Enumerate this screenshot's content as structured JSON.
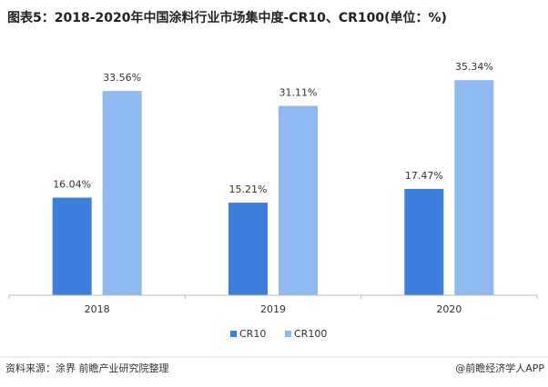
{
  "chart_data": {
    "type": "bar",
    "title": "图表5：2018-2020年中国涂料行业市场集中度-CR10、CR100(单位：%)",
    "categories": [
      "2018",
      "2019",
      "2020"
    ],
    "series": [
      {
        "name": "CR10",
        "color": "#3c7fdc",
        "values": [
          16.04,
          15.21,
          17.47
        ],
        "value_labels": [
          "16.04%",
          "15.21%",
          "17.47%"
        ]
      },
      {
        "name": "CR100",
        "color": "#8fb9f1",
        "values": [
          33.56,
          31.11,
          35.34
        ],
        "value_labels": [
          "33.56%",
          "31.11%",
          "35.34%"
        ]
      }
    ],
    "ylim": [
      0,
      40
    ],
    "source": "资料来源：涂界 前瞻产业研究院整理",
    "credit": "@前瞻经济学人APP"
  }
}
